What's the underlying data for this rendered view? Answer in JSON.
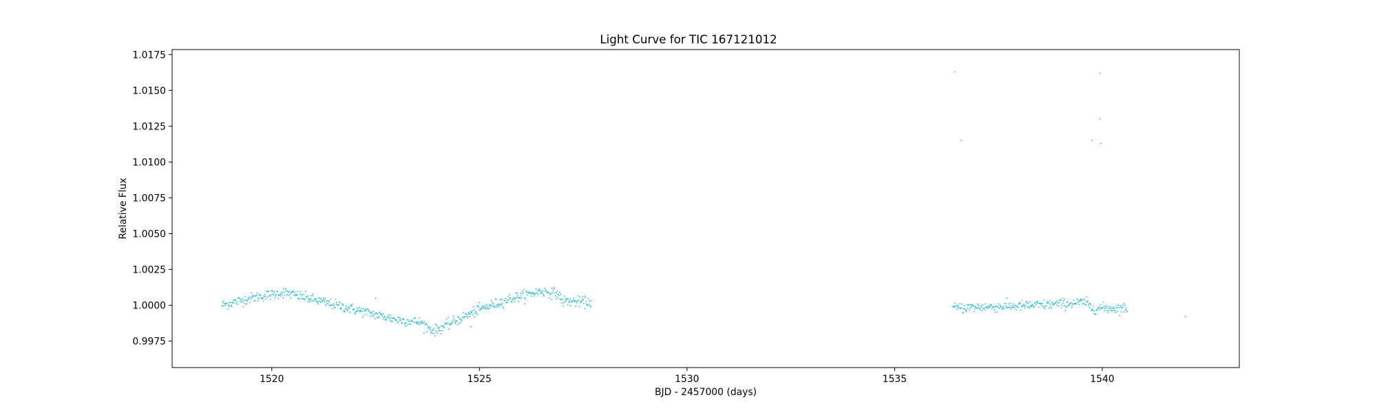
{
  "chart_data": {
    "type": "scatter",
    "title": "Light Curve for TIC 167121012",
    "xlabel": "BJD - 2457000 (days)",
    "ylabel": "Relative Flux",
    "xlim": [
      1517.6,
      1543.3
    ],
    "ylim": [
      0.99565,
      1.01785
    ],
    "x_ticks": [
      1520,
      1525,
      1530,
      1535,
      1540
    ],
    "y_ticks": [
      0.9975,
      1.0,
      1.0025,
      1.005,
      1.0075,
      1.01,
      1.0125,
      1.015,
      1.0175
    ],
    "x_tick_labels": [
      "1520",
      "1525",
      "1530",
      "1535",
      "1540"
    ],
    "y_tick_labels": [
      "0.9975",
      "1.0000",
      "1.0025",
      "1.0050",
      "1.0075",
      "1.0100",
      "1.0125",
      "1.0150",
      "1.0175"
    ],
    "grid": false,
    "marker_color": "#17becf",
    "series": [
      {
        "values_note": "",
        "segments": [
          {
            "x_start": 1518.8,
            "x_end": 1527.7,
            "cadence_days": 0.0139
          },
          {
            "x_start": 1536.4,
            "x_end": 1540.6,
            "cadence_days": 0.0139
          }
        ],
        "trend_points": [
          [
            1518.8,
            1.0
          ],
          [
            1519.5,
            1.0005
          ],
          [
            1520.3,
            1.0009
          ],
          [
            1521.0,
            1.0004
          ],
          [
            1522.0,
            0.9997
          ],
          [
            1523.0,
            0.999
          ],
          [
            1523.6,
            0.9988
          ],
          [
            1523.9,
            0.9982
          ],
          [
            1524.2,
            0.9986
          ],
          [
            1525.0,
            0.9997
          ],
          [
            1525.8,
            1.0005
          ],
          [
            1526.5,
            1.001
          ],
          [
            1526.9,
            1.0008
          ],
          [
            1527.0,
            1.0003
          ],
          [
            1527.7,
            1.0002
          ],
          [
            1536.4,
            0.9998
          ],
          [
            1537.5,
            0.9999
          ],
          [
            1538.5,
            1.0
          ],
          [
            1539.6,
            1.0002
          ],
          [
            1539.75,
            0.9998
          ],
          [
            1540.6,
            0.9998
          ]
        ],
        "scatter_sigma": 0.00018,
        "outliers": [
          [
            1536.45,
            1.0163
          ],
          [
            1536.6,
            1.0115
          ],
          [
            1539.75,
            1.0115
          ],
          [
            1539.95,
            1.0162
          ],
          [
            1539.95,
            1.013
          ],
          [
            1539.97,
            1.0113
          ],
          [
            1542.0,
            0.9992
          ],
          [
            1522.5,
            1.0005
          ],
          [
            1524.8,
            0.9985
          ]
        ]
      }
    ]
  }
}
